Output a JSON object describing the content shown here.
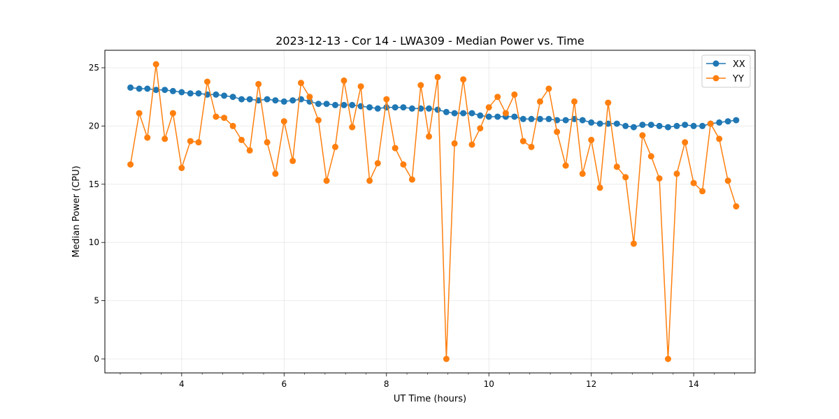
{
  "chart_data": {
    "type": "line",
    "title": "2023-12-13 - Cor 14 - LWA309 - Median Power vs. Time",
    "xlabel": "UT Time (hours)",
    "ylabel": "Median Power (CPU)",
    "xlim": [
      2.5,
      15.2
    ],
    "ylim": [
      -1.2,
      26.5
    ],
    "xticks": [
      4,
      6,
      8,
      10,
      12,
      14
    ],
    "yticks": [
      0,
      5,
      10,
      15,
      20,
      25
    ],
    "grid": true,
    "legend_position": "top-right",
    "x": [
      3.0,
      3.17,
      3.33,
      3.5,
      3.67,
      3.83,
      4.0,
      4.17,
      4.33,
      4.5,
      4.67,
      4.83,
      5.0,
      5.17,
      5.33,
      5.5,
      5.67,
      5.83,
      6.0,
      6.17,
      6.33,
      6.5,
      6.67,
      6.83,
      7.0,
      7.17,
      7.33,
      7.5,
      7.67,
      7.83,
      8.0,
      8.17,
      8.33,
      8.5,
      8.67,
      8.83,
      9.0,
      9.17,
      9.33,
      9.5,
      9.67,
      9.83,
      10.0,
      10.17,
      10.33,
      10.5,
      10.67,
      10.83,
      11.0,
      11.17,
      11.33,
      11.5,
      11.67,
      11.83,
      12.0,
      12.17,
      12.33,
      12.5,
      12.67,
      12.83,
      13.0,
      13.17,
      13.33,
      13.5,
      13.67,
      13.83,
      14.0,
      14.17,
      14.33,
      14.5,
      14.67,
      14.83
    ],
    "series": [
      {
        "name": "XX",
        "color": "#1f77b4",
        "values": [
          23.3,
          23.2,
          23.2,
          23.1,
          23.1,
          23.0,
          22.9,
          22.8,
          22.8,
          22.7,
          22.7,
          22.6,
          22.5,
          22.3,
          22.3,
          22.2,
          22.3,
          22.2,
          22.1,
          22.2,
          22.3,
          22.1,
          21.9,
          21.9,
          21.8,
          21.8,
          21.8,
          21.7,
          21.6,
          21.5,
          21.6,
          21.6,
          21.6,
          21.5,
          21.5,
          21.5,
          21.4,
          21.2,
          21.1,
          21.1,
          21.1,
          20.9,
          20.8,
          20.8,
          20.8,
          20.8,
          20.6,
          20.6,
          20.6,
          20.6,
          20.5,
          20.5,
          20.6,
          20.5,
          20.3,
          20.2,
          20.2,
          20.2,
          20.0,
          19.9,
          20.1,
          20.1,
          20.0,
          19.9,
          20.0,
          20.1,
          20.0,
          20.0,
          20.2,
          20.3,
          20.4,
          20.5
        ]
      },
      {
        "name": "YY",
        "color": "#ff7f0e",
        "values": [
          16.7,
          21.1,
          19.0,
          25.3,
          18.9,
          21.1,
          16.4,
          18.7,
          18.6,
          23.8,
          20.8,
          20.7,
          20.0,
          18.8,
          17.9,
          23.6,
          18.6,
          15.9,
          20.4,
          17.0,
          23.7,
          22.5,
          20.5,
          15.3,
          18.2,
          23.9,
          19.9,
          23.4,
          15.3,
          16.8,
          22.3,
          18.1,
          16.7,
          15.4,
          23.5,
          19.1,
          24.2,
          0.0,
          18.5,
          24.0,
          18.4,
          19.8,
          21.6,
          22.5,
          21.1,
          22.7,
          18.7,
          18.2,
          22.1,
          23.2,
          19.5,
          16.6,
          22.1,
          15.9,
          18.8,
          14.7,
          22.0,
          16.5,
          15.6,
          9.9,
          19.2,
          17.4,
          15.5,
          0.0,
          15.9,
          18.6,
          15.1,
          14.4,
          20.2,
          18.9,
          15.3,
          13.1
        ]
      }
    ]
  }
}
